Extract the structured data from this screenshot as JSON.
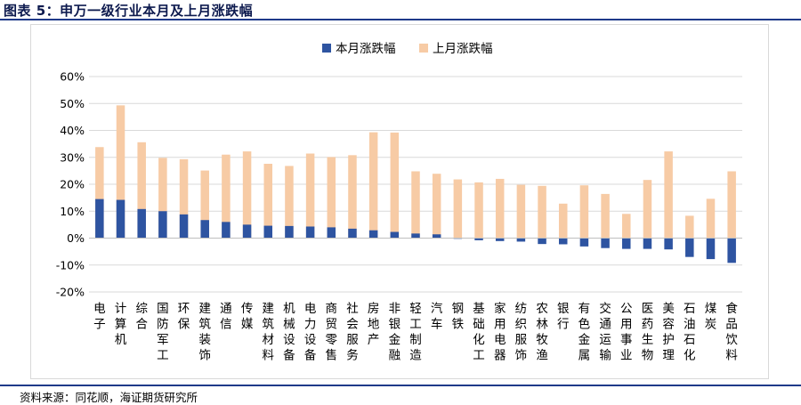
{
  "figure_title": "图表 5：申万一级行业本月及上月涨跌幅",
  "source_note": "资料来源：同花顺，海证期货研究所",
  "colors": {
    "current": "#2e54a1",
    "previous": "#f7cba5",
    "title": "#0d1a4e",
    "rule": "#1f3a8a"
  },
  "chart_data": {
    "type": "bar",
    "title": "",
    "xlabel": "",
    "ylabel": "",
    "ylim": [
      -20,
      60
    ],
    "yticks": [
      "-20%",
      "-10%",
      "0%",
      "10%",
      "20%",
      "30%",
      "40%",
      "50%",
      "60%"
    ],
    "grid": true,
    "legend_position": "top-center",
    "categories": [
      "电子",
      "计算机",
      "综合",
      "国防军工",
      "环保",
      "建筑装饰",
      "通信",
      "传媒",
      "建筑材料",
      "机械设备",
      "电力设备",
      "商贸零售",
      "社会服务",
      "房地产",
      "非银金融",
      "轻工制造",
      "汽车",
      "钢铁",
      "基础化工",
      "家用电器",
      "纺织服饰",
      "农林牧渔",
      "银行",
      "有色金属",
      "交通运输",
      "公用事业",
      "医药生物",
      "美容护理",
      "石油石化",
      "煤炭",
      "食品饮料"
    ],
    "series": [
      {
        "name": "本月涨跌幅",
        "values": [
          14.5,
          14.2,
          10.8,
          10.0,
          8.8,
          6.7,
          6.0,
          5.0,
          4.6,
          4.5,
          4.3,
          4.0,
          3.5,
          2.9,
          2.3,
          1.7,
          1.4,
          -0.2,
          -0.8,
          -1.1,
          -1.3,
          -2.2,
          -2.3,
          -3.1,
          -3.7,
          -4.0,
          -4.0,
          -4.2,
          -7.0,
          -7.8,
          -9.2
        ]
      },
      {
        "name": "上月涨跌幅",
        "values": [
          33.8,
          49.3,
          35.6,
          29.8,
          29.3,
          25.1,
          31.0,
          32.2,
          27.6,
          26.8,
          31.4,
          30.1,
          30.8,
          39.3,
          39.2,
          24.8,
          23.9,
          21.8,
          20.7,
          22.0,
          19.8,
          19.4,
          12.8,
          19.6,
          16.4,
          9.0,
          21.6,
          32.2,
          8.3,
          14.6,
          24.8
        ]
      }
    ]
  }
}
